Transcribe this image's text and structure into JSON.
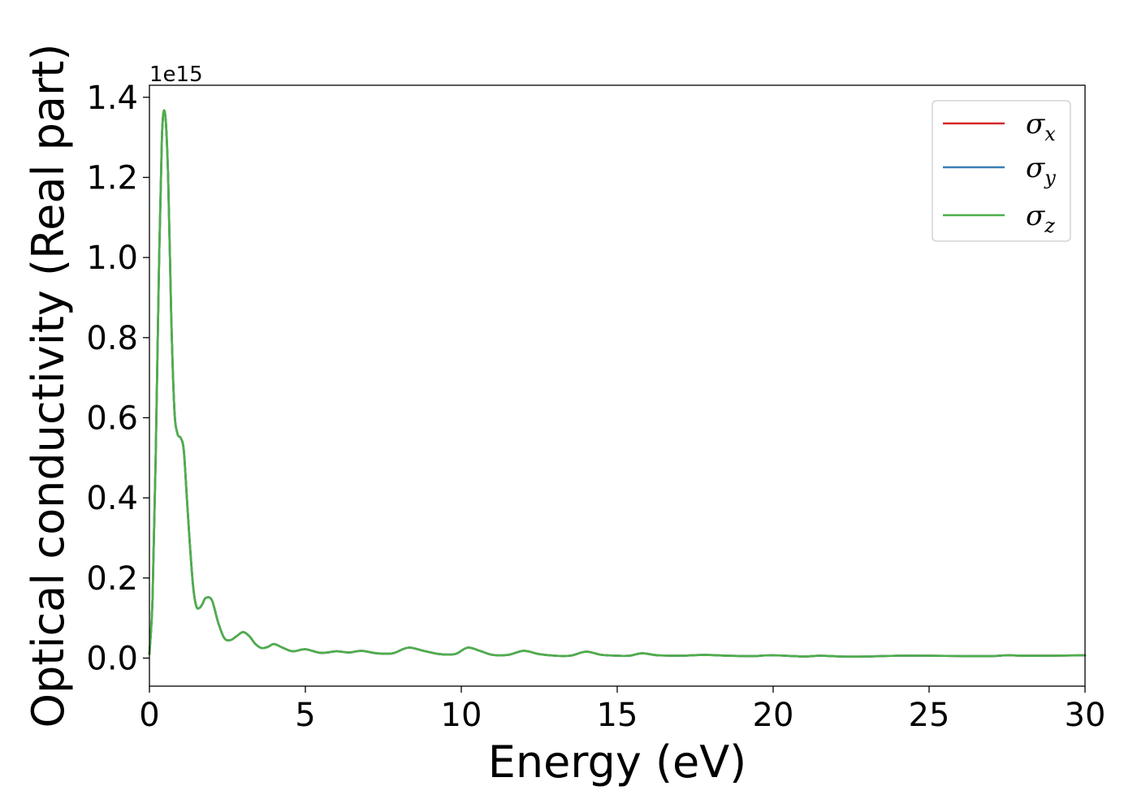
{
  "chart_data": {
    "type": "line",
    "xlabel": "Energy (eV)",
    "ylabel": "Optical conductivity (Real part)",
    "y_offset_text": "1e15",
    "y_scale": 1000000000000000.0,
    "xlim": [
      0,
      30
    ],
    "ylim": [
      -0.07,
      1.43
    ],
    "xticks": [
      0,
      5,
      10,
      15,
      20,
      25,
      30
    ],
    "xtick_labels": [
      "0",
      "5",
      "10",
      "15",
      "20",
      "25",
      "30"
    ],
    "yticks": [
      0.0,
      0.2,
      0.4,
      0.6,
      0.8,
      1.0,
      1.2,
      1.4
    ],
    "ytick_labels": [
      "0.0",
      "0.2",
      "0.4",
      "0.6",
      "0.8",
      "1.0",
      "1.2",
      "1.4"
    ],
    "grid": false,
    "legend_position": "top-right",
    "x": [
      0,
      0.1,
      0.2,
      0.3,
      0.4,
      0.5,
      0.6,
      0.7,
      0.8,
      0.9,
      1.0,
      1.1,
      1.2,
      1.3,
      1.4,
      1.5,
      1.6,
      1.7,
      1.8,
      2.0,
      2.2,
      2.4,
      2.6,
      2.8,
      3.0,
      3.2,
      3.4,
      3.6,
      3.8,
      4.0,
      4.3,
      4.6,
      5.0,
      5.5,
      6.0,
      6.4,
      6.8,
      7.3,
      7.8,
      8.3,
      8.8,
      9.3,
      9.8,
      10.2,
      10.6,
      11.0,
      11.5,
      12.0,
      12.5,
      13.0,
      13.5,
      14.0,
      14.5,
      15.0,
      15.4,
      15.8,
      16.3,
      17.0,
      17.8,
      18.5,
      19.3,
      20.0,
      21.0,
      21.5,
      22.2,
      23.0,
      24.0,
      25.0,
      26.0,
      27.0,
      27.5,
      28.0,
      29.0,
      30.0
    ],
    "series": [
      {
        "name": "σx",
        "color": "#d62728",
        "values": [
          0.01,
          0.15,
          0.5,
          0.95,
          1.3,
          1.36,
          1.2,
          0.85,
          0.62,
          0.56,
          0.55,
          0.52,
          0.4,
          0.28,
          0.18,
          0.13,
          0.125,
          0.135,
          0.15,
          0.145,
          0.09,
          0.05,
          0.045,
          0.055,
          0.065,
          0.055,
          0.035,
          0.025,
          0.028,
          0.035,
          0.025,
          0.017,
          0.022,
          0.013,
          0.017,
          0.014,
          0.018,
          0.012,
          0.012,
          0.026,
          0.018,
          0.01,
          0.01,
          0.026,
          0.018,
          0.008,
          0.008,
          0.018,
          0.01,
          0.006,
          0.006,
          0.016,
          0.008,
          0.006,
          0.006,
          0.012,
          0.007,
          0.006,
          0.008,
          0.006,
          0.005,
          0.007,
          0.004,
          0.006,
          0.004,
          0.004,
          0.006,
          0.006,
          0.005,
          0.005,
          0.007,
          0.006,
          0.006,
          0.007
        ]
      },
      {
        "name": "σy",
        "color": "#377eb8",
        "values": [
          0.01,
          0.15,
          0.5,
          0.95,
          1.3,
          1.36,
          1.2,
          0.85,
          0.62,
          0.56,
          0.55,
          0.52,
          0.4,
          0.28,
          0.18,
          0.13,
          0.125,
          0.135,
          0.15,
          0.145,
          0.09,
          0.05,
          0.045,
          0.055,
          0.065,
          0.055,
          0.035,
          0.025,
          0.028,
          0.035,
          0.025,
          0.017,
          0.022,
          0.013,
          0.017,
          0.014,
          0.018,
          0.012,
          0.012,
          0.026,
          0.018,
          0.01,
          0.01,
          0.026,
          0.018,
          0.008,
          0.008,
          0.018,
          0.01,
          0.006,
          0.006,
          0.016,
          0.008,
          0.006,
          0.006,
          0.012,
          0.007,
          0.006,
          0.008,
          0.006,
          0.005,
          0.007,
          0.004,
          0.006,
          0.004,
          0.004,
          0.006,
          0.006,
          0.005,
          0.005,
          0.007,
          0.006,
          0.006,
          0.007
        ]
      },
      {
        "name": "σz",
        "color": "#4daf4a",
        "values": [
          0.01,
          0.15,
          0.5,
          0.95,
          1.3,
          1.36,
          1.2,
          0.85,
          0.62,
          0.56,
          0.55,
          0.52,
          0.4,
          0.28,
          0.18,
          0.13,
          0.125,
          0.135,
          0.15,
          0.145,
          0.09,
          0.05,
          0.045,
          0.055,
          0.065,
          0.055,
          0.035,
          0.025,
          0.028,
          0.035,
          0.025,
          0.017,
          0.022,
          0.013,
          0.017,
          0.014,
          0.018,
          0.012,
          0.012,
          0.026,
          0.018,
          0.01,
          0.01,
          0.026,
          0.018,
          0.008,
          0.008,
          0.018,
          0.01,
          0.006,
          0.006,
          0.016,
          0.008,
          0.006,
          0.006,
          0.012,
          0.007,
          0.006,
          0.008,
          0.006,
          0.005,
          0.007,
          0.004,
          0.006,
          0.004,
          0.004,
          0.006,
          0.006,
          0.005,
          0.005,
          0.007,
          0.006,
          0.006,
          0.007
        ]
      }
    ],
    "legend": [
      {
        "symbol": "σ",
        "sub": "x",
        "color": "#d62728"
      },
      {
        "symbol": "σ",
        "sub": "y",
        "color": "#377eb8"
      },
      {
        "symbol": "σ",
        "sub": "z",
        "color": "#4daf4a"
      }
    ]
  }
}
